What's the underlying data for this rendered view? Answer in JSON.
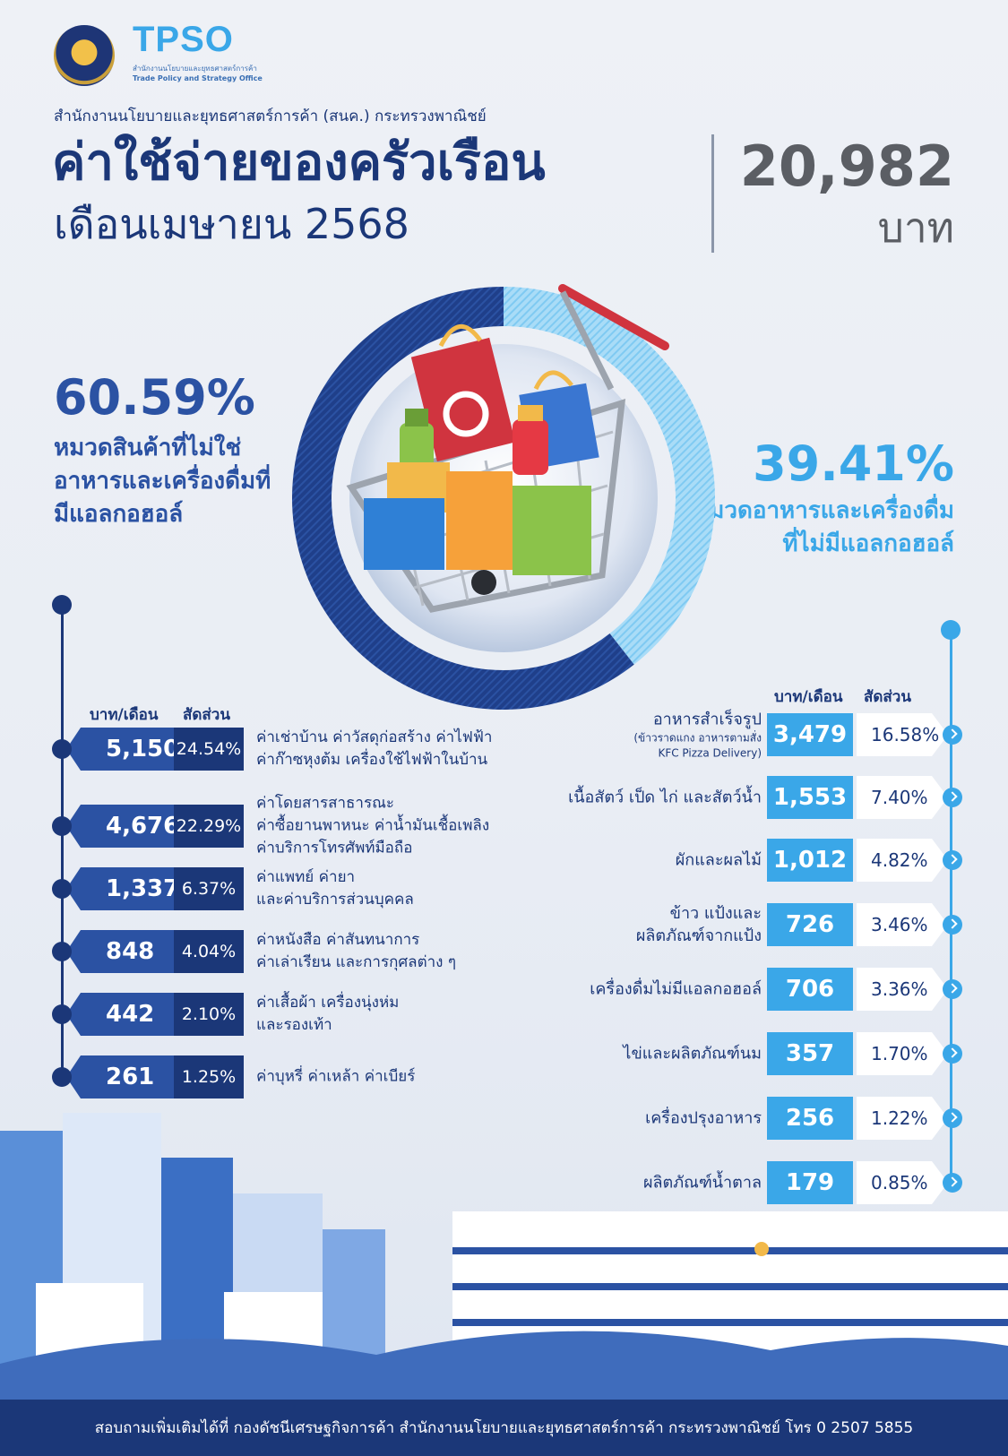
{
  "header": {
    "tpso_letters": "TPSO",
    "tpso_sub_th": "สำนักงานนโยบายและยุทธศาสตร์การค้า",
    "tpso_sub_en": "Trade Policy and Strategy Office",
    "org_line": "สำนักงานนโยบายและยุทธศาสตร์การค้า (สนค.) กระทรวงพาณิชย์",
    "title": "ค่าใช้จ่ายของครัวเรือน",
    "subtitle": "เดือนเมษายน 2568",
    "total_value": "20,982",
    "total_unit": "บาท"
  },
  "left_summary": {
    "pct": "60.59%",
    "label": "หมวดสินค้าที่ไม่ใช่อาหารและเครื่องดื่มที่มีแอลกอฮอล์"
  },
  "right_summary": {
    "pct": "39.41%",
    "label": "หมวดอาหารและเครื่องดื่มที่ไม่มีแอลกอฮอล์"
  },
  "left_table": {
    "col_baht": "บาท/เดือน",
    "col_share": "สัดส่วน"
  },
  "right_table": {
    "col_baht": "บาท/เดือน",
    "col_share": "สัดส่วน"
  },
  "footer": "สอบถามเพิ่มเติมได้ที่ กองดัชนีเศรษฐกิจการค้า สำนักงานนโยบายและยุทธศาสตร์การค้า กระทรวงพาณิชย์ โทร 0 2507 5855",
  "colors": {
    "navy": "#1b3778",
    "blue": "#2b52a3",
    "sky": "#3aa7e8",
    "grey_text": "#5b5e64"
  },
  "chart_data": {
    "type": "pie",
    "total": 20982,
    "unit": "บาท",
    "series": [
      {
        "name": "หมวดสินค้าที่ไม่ใช่อาหารและเครื่องดื่มที่มีแอลกอฮอล์",
        "share_pct": 60.59,
        "items": [
          {
            "value": "5,150",
            "amount": 5150,
            "share": "24.54%",
            "label_lines": [
              "ค่าเช่าบ้าน ค่าวัสดุก่อสร้าง ค่าไฟฟ้า",
              "ค่าก๊าซหุงต้ม เครื่องใช้ไฟฟ้าในบ้าน"
            ]
          },
          {
            "value": "4,676",
            "amount": 4676,
            "share": "22.29%",
            "label_lines": [
              "ค่าโดยสารสาธารณะ",
              "ค่าซื้อยานพาหนะ ค่าน้ำมันเชื้อเพลิง",
              "ค่าบริการโทรศัพท์มือถือ"
            ]
          },
          {
            "value": "1,337",
            "amount": 1337,
            "share": "6.37%",
            "label_lines": [
              "ค่าแพทย์ ค่ายา",
              "และค่าบริการส่วนบุคคล"
            ]
          },
          {
            "value": "848",
            "amount": 848,
            "share": "4.04%",
            "label_lines": [
              "ค่าหนังสือ ค่าสันทนาการ",
              "ค่าเล่าเรียน และการกุศลต่าง ๆ"
            ]
          },
          {
            "value": "442",
            "amount": 442,
            "share": "2.10%",
            "label_lines": [
              "ค่าเสื้อผ้า เครื่องนุ่งห่ม",
              "และรองเท้า"
            ]
          },
          {
            "value": "261",
            "amount": 261,
            "share": "1.25%",
            "label_lines": [
              "ค่าบุหรี่ ค่าเหล้า ค่าเบียร์"
            ]
          }
        ]
      },
      {
        "name": "หมวดอาหารและเครื่องดื่มที่ไม่มีแอลกอฮอล์",
        "share_pct": 39.41,
        "items": [
          {
            "value": "3,479",
            "amount": 3479,
            "share": "16.58%",
            "label_lines": [
              "อาหารสำเร็จรูป"
            ],
            "note_lines": [
              "(ข้าวราดแกง อาหารตามสั่ง",
              "KFC Pizza Delivery)"
            ]
          },
          {
            "value": "1,553",
            "amount": 1553,
            "share": "7.40%",
            "label_lines": [
              "เนื้อสัตว์ เป็ด ไก่ และสัตว์น้ำ"
            ]
          },
          {
            "value": "1,012",
            "amount": 1012,
            "share": "4.82%",
            "label_lines": [
              "ผักและผลไม้"
            ]
          },
          {
            "value": "726",
            "amount": 726,
            "share": "3.46%",
            "label_lines": [
              "ข้าว แป้งและ",
              "ผลิตภัณฑ์จากแป้ง"
            ]
          },
          {
            "value": "706",
            "amount": 706,
            "share": "3.36%",
            "label_lines": [
              "เครื่องดื่มไม่มีแอลกอฮอล์"
            ]
          },
          {
            "value": "357",
            "amount": 357,
            "share": "1.70%",
            "label_lines": [
              "ไข่และผลิตภัณฑ์นม"
            ]
          },
          {
            "value": "256",
            "amount": 256,
            "share": "1.22%",
            "label_lines": [
              "เครื่องปรุงอาหาร"
            ]
          },
          {
            "value": "179",
            "amount": 179,
            "share": "0.85%",
            "label_lines": [
              "ผลิตภัณฑ์น้ำตาล"
            ]
          }
        ]
      }
    ]
  }
}
